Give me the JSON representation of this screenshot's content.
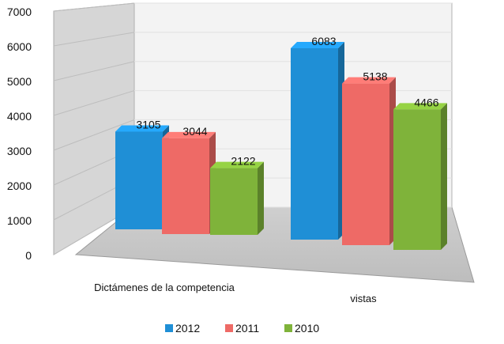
{
  "chart_data": {
    "type": "bar",
    "title": "",
    "xlabel": "",
    "ylabel": "",
    "ylim": [
      0,
      7000
    ],
    "yticks": [
      0,
      1000,
      2000,
      3000,
      4000,
      5000,
      6000,
      7000
    ],
    "categories": [
      "Dictámenes de la competencia",
      "vistas"
    ],
    "series": [
      {
        "name": "2012",
        "values": [
          3105,
          6083
        ],
        "color": "#1f8fd6"
      },
      {
        "name": "2011",
        "values": [
          3044,
          5138
        ],
        "color": "#ee6a66"
      },
      {
        "name": "2010",
        "values": [
          2122,
          4466
        ],
        "color": "#7fb33a"
      }
    ],
    "legend_position": "bottom",
    "grid": true
  }
}
